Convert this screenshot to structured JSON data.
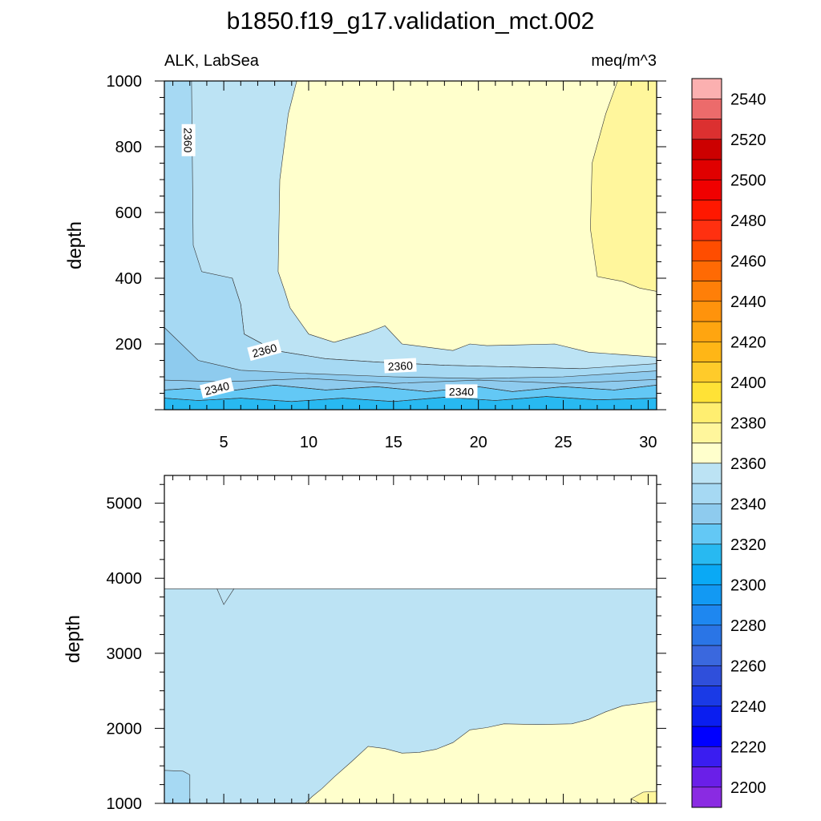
{
  "title": "b1850.f19_g17.validation_mct.002",
  "chart_data": [
    {
      "type": "contour",
      "panel": "upper",
      "left_label": "ALK, LabSea",
      "right_label": "meq/m^3",
      "ylabel": "depth",
      "xlim": [
        1.5,
        30.5
      ],
      "ylim": [
        1000,
        0
      ],
      "x_ticks": [
        5,
        10,
        15,
        20,
        25,
        30
      ],
      "y_ticks": [
        200,
        400,
        600,
        800,
        1000
      ],
      "contour_labels": [
        {
          "text": "2340",
          "x": 4.6,
          "y": 65,
          "rot": -14
        },
        {
          "text": "2340",
          "x": 19.0,
          "y": 55,
          "rot": 0
        },
        {
          "text": "2360",
          "x": 7.4,
          "y": 180,
          "rot": -15
        },
        {
          "text": "2360",
          "x": 15.4,
          "y": 133,
          "rot": -3
        },
        {
          "text": "2360",
          "x": 2.9,
          "y": 820,
          "rot": 90
        }
      ],
      "regions": [
        {
          "level": "2330-2340",
          "color": "#8ecbee",
          "polygon": [
            [
              1.5,
              0
            ],
            [
              30.5,
              0
            ],
            [
              30.5,
              160
            ],
            [
              1.5,
              250
            ]
          ]
        },
        {
          "level": "2360-2370",
          "color": "#bce3f4",
          "polygon": [
            [
              30.5,
              140
            ],
            [
              30.5,
              1000
            ],
            [
              1.5,
              1000
            ],
            [
              1.5,
              400
            ],
            [
              5.5,
              400
            ],
            [
              6.0,
              320
            ],
            [
              6.2,
              230
            ],
            [
              8.0,
              180
            ],
            [
              11.0,
              155
            ],
            [
              14.0,
              145
            ],
            [
              18.0,
              135
            ],
            [
              22.0,
              130
            ],
            [
              26.0,
              125
            ],
            [
              30.5,
              118
            ]
          ]
        },
        {
          "level": "2370-2380",
          "color": "#a6d9f3",
          "polygon": [
            [
              1.5,
              250
            ],
            [
              3.5,
              150
            ],
            [
              6.0,
              120
            ],
            [
              10.0,
              110
            ],
            [
              15.0,
              100
            ],
            [
              20.0,
              95
            ],
            [
              25.0,
              100
            ],
            [
              30.5,
              118
            ],
            [
              30.5,
              140
            ],
            [
              26.0,
              125
            ],
            [
              22.0,
              130
            ],
            [
              18.0,
              135
            ],
            [
              14.0,
              145
            ],
            [
              11.0,
              155
            ],
            [
              8.0,
              180
            ],
            [
              6.2,
              230
            ],
            [
              6.0,
              320
            ],
            [
              5.5,
              400
            ],
            [
              3.7,
              420
            ],
            [
              3.2,
              500
            ],
            [
              3.1,
              1000
            ],
            [
              1.5,
              1000
            ]
          ]
        },
        {
          "level": "2380-2390",
          "color": "#ffffcc",
          "polygon": [
            [
              30.5,
              160
            ],
            [
              26.5,
              175
            ],
            [
              24.5,
              200
            ],
            [
              20.5,
              195
            ],
            [
              19.5,
              200
            ],
            [
              18.5,
              180
            ],
            [
              15.5,
              200
            ],
            [
              14.5,
              255
            ],
            [
              13.5,
              235
            ],
            [
              12.5,
              220
            ],
            [
              11.5,
              205
            ],
            [
              10.0,
              230
            ],
            [
              8.9,
              310
            ],
            [
              8.6,
              360
            ],
            [
              8.2,
              420
            ],
            [
              8.3,
              700
            ],
            [
              8.8,
              900
            ],
            [
              9.3,
              1000
            ],
            [
              30.5,
              1000
            ]
          ]
        },
        {
          "level": "2390-2400",
          "color": "#fff69c",
          "polygon": [
            [
              30.5,
              360
            ],
            [
              29.5,
              370
            ],
            [
              28.5,
              390
            ],
            [
              27.0,
              405
            ],
            [
              26.6,
              550
            ],
            [
              26.7,
              750
            ],
            [
              27.5,
              900
            ],
            [
              28.2,
              1000
            ],
            [
              30.5,
              1000
            ]
          ]
        },
        {
          "level": "2320-2330",
          "color": "#63c8f5",
          "polygon": [
            [
              1.5,
              0
            ],
            [
              30.5,
              0
            ],
            [
              30.5,
              75
            ],
            [
              28.0,
              60
            ],
            [
              25.0,
              70
            ],
            [
              22.0,
              55
            ],
            [
              20.0,
              70
            ],
            [
              17.0,
              55
            ],
            [
              14.0,
              70
            ],
            [
              11.0,
              60
            ],
            [
              8.0,
              75
            ],
            [
              5.0,
              55
            ],
            [
              3.0,
              65
            ],
            [
              1.5,
              60
            ]
          ]
        },
        {
          "level": "2310-2320",
          "color": "#28b9f1",
          "polygon": [
            [
              1.5,
              0
            ],
            [
              30.5,
              0
            ],
            [
              30.5,
              35
            ],
            [
              27.0,
              30
            ],
            [
              24.0,
              40
            ],
            [
              21.0,
              28
            ],
            [
              18.0,
              38
            ],
            [
              15.0,
              25
            ],
            [
              12.0,
              35
            ],
            [
              9.0,
              25
            ],
            [
              6.0,
              35
            ],
            [
              3.5,
              28
            ],
            [
              1.5,
              35
            ]
          ]
        }
      ],
      "contour_lines": [
        [
          [
            1.5,
            60
          ],
          [
            3.0,
            65
          ],
          [
            5.0,
            55
          ],
          [
            8.0,
            75
          ],
          [
            11.0,
            60
          ],
          [
            14.0,
            70
          ],
          [
            17.0,
            55
          ],
          [
            20.0,
            70
          ],
          [
            22.0,
            55
          ],
          [
            25.0,
            70
          ],
          [
            28.0,
            60
          ],
          [
            30.5,
            75
          ]
        ],
        [
          [
            1.5,
            35
          ],
          [
            3.5,
            28
          ],
          [
            6.0,
            35
          ],
          [
            9.0,
            25
          ],
          [
            12.0,
            35
          ],
          [
            15.0,
            25
          ],
          [
            18.0,
            38
          ],
          [
            21.0,
            28
          ],
          [
            24.0,
            40
          ],
          [
            27.0,
            30
          ],
          [
            30.5,
            35
          ]
        ],
        [
          [
            1.5,
            90
          ],
          [
            5.0,
            85
          ],
          [
            10.0,
            95
          ],
          [
            15.0,
            80
          ],
          [
            20.0,
            90
          ],
          [
            25.0,
            80
          ],
          [
            30.5,
            92
          ]
        ]
      ]
    },
    {
      "type": "contour",
      "panel": "lower",
      "ylabel": "depth",
      "xlim": [
        1.5,
        30.5
      ],
      "ylim": [
        5370,
        1000
      ],
      "x_ticks": [
        5,
        10,
        15,
        20,
        25,
        30
      ],
      "y_ticks": [
        1000,
        2000,
        3000,
        4000,
        5000
      ],
      "data_bottom": 3860,
      "regions": [
        {
          "level": "2360-2370",
          "color": "#bce3f4",
          "polygon": [
            [
              1.5,
              1000
            ],
            [
              30.5,
              1000
            ],
            [
              30.5,
              3860
            ],
            [
              1.5,
              3860
            ]
          ]
        },
        {
          "level": "2370-2380",
          "color": "#a6d9f3",
          "polygon": [
            [
              1.5,
              1000
            ],
            [
              3.0,
              1000
            ],
            [
              3.0,
              1380
            ],
            [
              2.6,
              1430
            ],
            [
              1.5,
              1440
            ]
          ]
        },
        {
          "level": "2380-2390",
          "color": "#ffffcc",
          "polygon": [
            [
              9.8,
              1000
            ],
            [
              30.5,
              1000
            ],
            [
              30.5,
              2360
            ],
            [
              28.5,
              2300
            ],
            [
              27.5,
              2220
            ],
            [
              26.5,
              2120
            ],
            [
              25.5,
              2060
            ],
            [
              23.5,
              2050
            ],
            [
              21.5,
              2060
            ],
            [
              20.5,
              2010
            ],
            [
              19.5,
              1980
            ],
            [
              18.5,
              1810
            ],
            [
              17.5,
              1720
            ],
            [
              16.5,
              1680
            ],
            [
              15.5,
              1670
            ],
            [
              14.5,
              1730
            ],
            [
              13.5,
              1760
            ],
            [
              12.5,
              1550
            ],
            [
              11.5,
              1350
            ],
            [
              10.8,
              1200
            ],
            [
              10.2,
              1090
            ]
          ]
        },
        {
          "level": "2390-2400",
          "color": "#fff69c",
          "polygon": [
            [
              29.5,
              1000
            ],
            [
              30.5,
              1000
            ],
            [
              30.5,
              1160
            ],
            [
              29.7,
              1150
            ],
            [
              29.0,
              1060
            ]
          ]
        }
      ],
      "contour_lines": [
        [
          [
            5.6,
            3860
          ],
          [
            5.0,
            3650
          ],
          [
            4.6,
            3860
          ]
        ]
      ]
    },
    {
      "type": "colorbar",
      "levels": [
        2200,
        2210,
        2220,
        2230,
        2240,
        2250,
        2260,
        2270,
        2280,
        2290,
        2300,
        2310,
        2320,
        2330,
        2340,
        2350,
        2360,
        2370,
        2380,
        2390,
        2400,
        2410,
        2420,
        2430,
        2440,
        2450,
        2460,
        2470,
        2480,
        2490,
        2500,
        2510,
        2520,
        2530,
        2540,
        2550
      ],
      "tick_labels": [
        2200,
        2220,
        2240,
        2260,
        2280,
        2300,
        2320,
        2340,
        2360,
        2380,
        2400,
        2420,
        2440,
        2460,
        2480,
        2500,
        2520,
        2540
      ],
      "colors": [
        "#8a2be2",
        "#6a1fe8",
        "#3a1df0",
        "#0000ff",
        "#0a1ef0",
        "#1a3ae6",
        "#2f4fdb",
        "#3a68de",
        "#2a75e6",
        "#1e87f0",
        "#1299f3",
        "#0aa9f5",
        "#28b9f1",
        "#63c8f5",
        "#8ecbee",
        "#a6d9f3",
        "#bce3f4",
        "#ffffcc",
        "#fff69c",
        "#ffee70",
        "#ffe236",
        "#ffcb2a",
        "#ffb616",
        "#ffa510",
        "#ff930c",
        "#ff7f08",
        "#ff6a04",
        "#ff4d00",
        "#ff3010",
        "#ff1800",
        "#f00000",
        "#e00000",
        "#cc0000",
        "#dc3030",
        "#ec6b6b",
        "#fbb0b0"
      ]
    }
  ]
}
